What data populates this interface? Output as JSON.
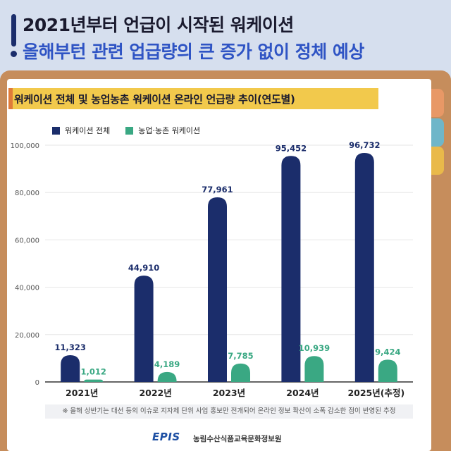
{
  "header": {
    "line1": "2021년부터 언급이 시작된 워케이션",
    "line2": "올해부턴 관련 업급량의 큰 증가 없이 정체 예상"
  },
  "chart_data": {
    "type": "bar",
    "title": "워케이션 전체 및 농업농촌 워케이션 온라인 언급량 추이(연도별)",
    "categories": [
      "2021년",
      "2022년",
      "2023년",
      "2024년",
      "2025년(추정)"
    ],
    "series": [
      {
        "name": "워케이션 전체",
        "values": [
          11323,
          44910,
          77961,
          95452,
          96732
        ],
        "labels": [
          "11,323",
          "44,910",
          "77,961",
          "95,452",
          "96,732"
        ],
        "color": "#1b2d6b"
      },
      {
        "name": "농업·농촌 워케이션",
        "values": [
          1012,
          4189,
          7785,
          10939,
          9424
        ],
        "labels": [
          "1,012",
          "4,189",
          "7,785",
          "10,939",
          "9,424"
        ],
        "color": "#3aa883"
      }
    ],
    "yticks": [
      0,
      20000,
      40000,
      60000,
      80000,
      100000
    ],
    "ytick_labels": [
      "0",
      "20,000",
      "40,000",
      "60,000",
      "80,000",
      "100,000"
    ],
    "ylim": [
      0,
      100000
    ],
    "grid": true,
    "legend_position": "top-left"
  },
  "footnote": "※ 올해 상반기는 대선 등의 이슈로 지자체 단위 사업 홍보만 전개되어 온라인 정보 확산이 소폭 감소한 점이 반영된 추정",
  "footer": {
    "logo": "EPIS",
    "org": "농림수산식품교육문화정보원"
  }
}
